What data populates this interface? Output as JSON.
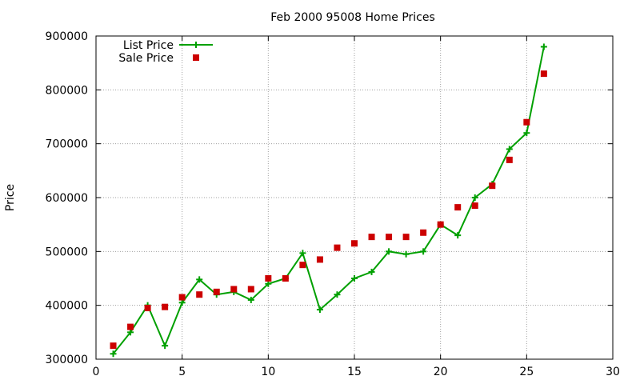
{
  "chart_data": {
    "type": "line",
    "title": "Feb 2000 95008 Home Prices",
    "xlabel": "",
    "ylabel": "Price",
    "xlim": [
      0,
      30
    ],
    "ylim": [
      300000,
      900000
    ],
    "x_ticks": [
      0,
      5,
      10,
      15,
      20,
      25,
      30
    ],
    "y_ticks": [
      300000,
      400000,
      500000,
      600000,
      700000,
      800000,
      900000
    ],
    "grid": true,
    "legend_position": "top-left",
    "series": [
      {
        "name": "List Price",
        "style": "line-with-plus-markers",
        "color": "#00a000",
        "x": [
          1,
          2,
          3,
          4,
          5,
          6,
          7,
          8,
          9,
          10,
          11,
          12,
          13,
          14,
          15,
          16,
          17,
          18,
          19,
          20,
          21,
          22,
          23,
          24,
          25,
          26
        ],
        "values": [
          310000,
          350000,
          400000,
          325000,
          405000,
          448000,
          420000,
          425000,
          410000,
          440000,
          450000,
          497000,
          392000,
          420000,
          450000,
          462000,
          500000,
          495000,
          500000,
          550000,
          530000,
          600000,
          625000,
          690000,
          720000,
          880000
        ]
      },
      {
        "name": "Sale Price",
        "style": "square-markers",
        "color": "#cc0000",
        "x": [
          1,
          2,
          3,
          4,
          5,
          6,
          7,
          8,
          9,
          10,
          11,
          12,
          13,
          14,
          15,
          16,
          17,
          18,
          19,
          20,
          21,
          22,
          23,
          24,
          25,
          26
        ],
        "values": [
          325000,
          360000,
          395000,
          397000,
          415000,
          420000,
          425000,
          430000,
          430000,
          450000,
          450000,
          475000,
          485000,
          507000,
          515000,
          527000,
          527000,
          527000,
          535000,
          550000,
          582000,
          585000,
          622000,
          670000,
          740000,
          830000
        ]
      }
    ]
  }
}
